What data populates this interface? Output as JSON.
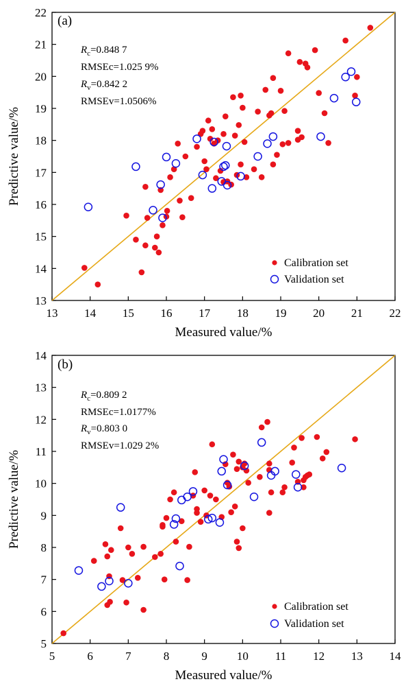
{
  "chart_data": [
    {
      "type": "scatter",
      "panel_label": "(a)",
      "xlabel": "Measured value/%",
      "ylabel": "Predictive value/%",
      "xlim": [
        13,
        22
      ],
      "ylim": [
        13,
        22
      ],
      "xticks": [
        "13",
        "14",
        "15",
        "16",
        "17",
        "18",
        "19",
        "20",
        "21",
        "22"
      ],
      "yticks": [
        "13",
        "14",
        "15",
        "16",
        "17",
        "18",
        "19",
        "20",
        "21",
        "22"
      ],
      "reference_line": "y = x",
      "line_color": "#E6A817",
      "stats": [
        "Rc=0.848 7",
        "RMSEc=1.025 9%",
        "Rv=0.842 2",
        "RMSEv=1.0506%"
      ],
      "legend": {
        "position": "bottom-right",
        "calibration": "Calibration set",
        "validation": "Validation set"
      },
      "series": [
        {
          "name": "Calibration set",
          "marker": "filled-circle",
          "color": "#E8141C",
          "points": [
            [
              13.85,
              14.02
            ],
            [
              14.2,
              13.5
            ],
            [
              14.95,
              15.65
            ],
            [
              15.2,
              14.9
            ],
            [
              15.35,
              13.88
            ],
            [
              15.45,
              14.72
            ],
            [
              15.45,
              16.55
            ],
            [
              15.5,
              15.58
            ],
            [
              15.7,
              14.65
            ],
            [
              15.75,
              15.0
            ],
            [
              15.8,
              14.5
            ],
            [
              15.85,
              16.45
            ],
            [
              15.9,
              15.35
            ],
            [
              16.0,
              15.62
            ],
            [
              16.02,
              15.8
            ],
            [
              16.1,
              16.85
            ],
            [
              16.2,
              17.1
            ],
            [
              16.3,
              17.9
            ],
            [
              16.35,
              16.12
            ],
            [
              16.42,
              15.6
            ],
            [
              16.5,
              17.5
            ],
            [
              16.65,
              16.2
            ],
            [
              16.8,
              17.8
            ],
            [
              16.9,
              18.2
            ],
            [
              16.95,
              18.3
            ],
            [
              17.0,
              17.35
            ],
            [
              17.05,
              17.1
            ],
            [
              17.1,
              18.62
            ],
            [
              17.15,
              18.05
            ],
            [
              17.2,
              18.35
            ],
            [
              17.25,
              17.9
            ],
            [
              17.3,
              16.82
            ],
            [
              17.35,
              18.0
            ],
            [
              17.42,
              17.05
            ],
            [
              17.5,
              18.2
            ],
            [
              17.5,
              16.7
            ],
            [
              17.55,
              18.75
            ],
            [
              17.6,
              16.72
            ],
            [
              17.7,
              16.62
            ],
            [
              17.75,
              19.35
            ],
            [
              17.8,
              18.15
            ],
            [
              17.85,
              16.92
            ],
            [
              17.9,
              18.48
            ],
            [
              17.95,
              19.4
            ],
            [
              17.95,
              17.25
            ],
            [
              18.0,
              19.02
            ],
            [
              18.05,
              17.95
            ],
            [
              18.1,
              16.85
            ],
            [
              18.3,
              17.1
            ],
            [
              18.4,
              18.9
            ],
            [
              18.5,
              16.85
            ],
            [
              18.6,
              19.58
            ],
            [
              18.7,
              18.78
            ],
            [
              18.75,
              18.85
            ],
            [
              18.8,
              19.95
            ],
            [
              18.8,
              17.25
            ],
            [
              18.9,
              17.55
            ],
            [
              19.0,
              19.55
            ],
            [
              19.05,
              17.88
            ],
            [
              19.1,
              18.92
            ],
            [
              19.2,
              20.72
            ],
            [
              19.2,
              17.92
            ],
            [
              19.45,
              18.3
            ],
            [
              19.45,
              18.02
            ],
            [
              19.5,
              20.45
            ],
            [
              19.55,
              18.1
            ],
            [
              19.65,
              20.4
            ],
            [
              19.7,
              20.28
            ],
            [
              19.9,
              20.82
            ],
            [
              20.0,
              19.48
            ],
            [
              20.15,
              18.85
            ],
            [
              20.25,
              17.92
            ],
            [
              20.7,
              21.12
            ],
            [
              20.95,
              19.4
            ],
            [
              21.0,
              19.98
            ],
            [
              21.35,
              21.52
            ]
          ]
        },
        {
          "name": "Validation set",
          "marker": "open-circle",
          "color": "#1414E0",
          "points": [
            [
              13.95,
              15.92
            ],
            [
              15.2,
              17.18
            ],
            [
              15.65,
              15.82
            ],
            [
              15.85,
              16.62
            ],
            [
              15.9,
              15.58
            ],
            [
              16.0,
              17.48
            ],
            [
              16.25,
              17.28
            ],
            [
              16.8,
              18.05
            ],
            [
              16.95,
              16.92
            ],
            [
              17.2,
              16.5
            ],
            [
              17.25,
              17.95
            ],
            [
              17.45,
              16.72
            ],
            [
              17.5,
              17.18
            ],
            [
              17.55,
              17.22
            ],
            [
              17.58,
              17.82
            ],
            [
              17.6,
              16.6
            ],
            [
              17.95,
              16.88
            ],
            [
              18.4,
              17.5
            ],
            [
              18.65,
              17.9
            ],
            [
              18.8,
              18.12
            ],
            [
              20.05,
              18.12
            ],
            [
              20.4,
              19.32
            ],
            [
              20.7,
              19.98
            ],
            [
              20.85,
              20.15
            ],
            [
              20.98,
              19.2
            ]
          ]
        }
      ]
    },
    {
      "type": "scatter",
      "panel_label": "(b)",
      "xlabel": "Measured value/%",
      "ylabel": "Predictive value/%",
      "xlim": [
        5,
        14
      ],
      "ylim": [
        5,
        14
      ],
      "xticks": [
        "5",
        "6",
        "7",
        "8",
        "9",
        "10",
        "11",
        "12",
        "13",
        "14"
      ],
      "yticks": [
        "5",
        "6",
        "7",
        "8",
        "9",
        "10",
        "11",
        "12",
        "13",
        "14"
      ],
      "reference_line": "y = x",
      "line_color": "#E6A817",
      "stats": [
        "Rc=0.809 2",
        "RMSEc=1.0177%",
        "Rv=0.803 0",
        "RMSEv=1.029 2%"
      ],
      "legend": {
        "position": "bottom-right",
        "calibration": "Calibration set",
        "validation": "Validation set"
      },
      "series": [
        {
          "name": "Calibration set",
          "marker": "filled-circle",
          "color": "#E8141C",
          "points": [
            [
              5.3,
              5.32
            ],
            [
              6.1,
              7.58
            ],
            [
              6.4,
              8.1
            ],
            [
              6.45,
              7.72
            ],
            [
              6.45,
              6.2
            ],
            [
              6.5,
              7.1
            ],
            [
              6.52,
              6.3
            ],
            [
              6.55,
              7.92
            ],
            [
              6.8,
              8.6
            ],
            [
              6.85,
              6.98
            ],
            [
              6.95,
              6.28
            ],
            [
              7.0,
              8.0
            ],
            [
              7.1,
              7.8
            ],
            [
              7.25,
              7.05
            ],
            [
              7.4,
              8.02
            ],
            [
              7.4,
              6.05
            ],
            [
              7.7,
              7.7
            ],
            [
              7.85,
              7.8
            ],
            [
              7.9,
              8.7
            ],
            [
              7.9,
              8.65
            ],
            [
              7.95,
              7.0
            ],
            [
              8.0,
              8.92
            ],
            [
              8.1,
              9.5
            ],
            [
              8.2,
              9.72
            ],
            [
              8.25,
              8.18
            ],
            [
              8.4,
              8.82
            ],
            [
              8.55,
              6.98
            ],
            [
              8.6,
              8.02
            ],
            [
              8.7,
              9.62
            ],
            [
              8.75,
              10.35
            ],
            [
              8.8,
              9.2
            ],
            [
              8.8,
              9.08
            ],
            [
              8.9,
              8.8
            ],
            [
              9.0,
              9.78
            ],
            [
              9.05,
              9.0
            ],
            [
              9.15,
              9.62
            ],
            [
              9.2,
              11.22
            ],
            [
              9.3,
              9.5
            ],
            [
              9.45,
              8.95
            ],
            [
              9.55,
              10.6
            ],
            [
              9.6,
              10.02
            ],
            [
              9.65,
              9.9
            ],
            [
              9.7,
              9.1
            ],
            [
              9.75,
              10.9
            ],
            [
              9.8,
              9.28
            ],
            [
              9.85,
              8.18
            ],
            [
              9.85,
              10.45
            ],
            [
              9.9,
              7.98
            ],
            [
              9.9,
              10.68
            ],
            [
              10.0,
              10.5
            ],
            [
              10.0,
              8.6
            ],
            [
              10.05,
              10.62
            ],
            [
              10.1,
              10.4
            ],
            [
              10.15,
              10.02
            ],
            [
              10.45,
              10.2
            ],
            [
              10.5,
              11.75
            ],
            [
              10.65,
              11.92
            ],
            [
              10.7,
              10.62
            ],
            [
              10.7,
              10.42
            ],
            [
              10.7,
              9.08
            ],
            [
              10.75,
              9.72
            ],
            [
              11.05,
              9.72
            ],
            [
              11.1,
              9.88
            ],
            [
              11.3,
              10.65
            ],
            [
              11.35,
              11.12
            ],
            [
              11.45,
              10.05
            ],
            [
              11.55,
              11.42
            ],
            [
              11.6,
              9.88
            ],
            [
              11.6,
              10.1
            ],
            [
              11.65,
              10.2
            ],
            [
              11.7,
              10.25
            ],
            [
              11.75,
              10.28
            ],
            [
              11.95,
              11.45
            ],
            [
              12.1,
              10.78
            ],
            [
              12.2,
              10.98
            ],
            [
              12.95,
              11.38
            ]
          ]
        },
        {
          "name": "Validation set",
          "marker": "open-circle",
          "color": "#1414E0",
          "points": [
            [
              5.7,
              7.28
            ],
            [
              6.3,
              6.78
            ],
            [
              6.5,
              6.95
            ],
            [
              6.8,
              9.25
            ],
            [
              7.0,
              6.88
            ],
            [
              8.2,
              8.72
            ],
            [
              8.25,
              8.9
            ],
            [
              8.35,
              7.42
            ],
            [
              8.4,
              9.48
            ],
            [
              8.55,
              9.58
            ],
            [
              8.7,
              9.75
            ],
            [
              9.1,
              8.88
            ],
            [
              9.2,
              8.92
            ],
            [
              9.4,
              8.78
            ],
            [
              9.45,
              10.38
            ],
            [
              9.5,
              10.75
            ],
            [
              9.6,
              9.95
            ],
            [
              10.05,
              10.55
            ],
            [
              10.3,
              9.58
            ],
            [
              10.5,
              11.28
            ],
            [
              10.75,
              10.25
            ],
            [
              10.85,
              10.38
            ],
            [
              11.4,
              10.28
            ],
            [
              11.45,
              9.88
            ],
            [
              12.6,
              10.48
            ]
          ]
        }
      ]
    }
  ]
}
